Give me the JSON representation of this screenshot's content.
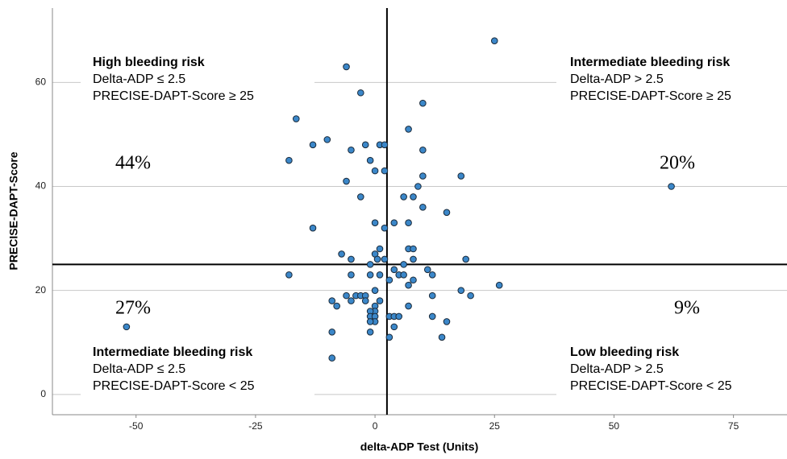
{
  "chart_data": {
    "type": "scatter",
    "x_label": "delta-ADP Test (Units)",
    "y_label": "PRECISE-DAPT-Score",
    "xlim": [
      -67.5,
      86.2
    ],
    "ylim": [
      -3.9,
      74.3
    ],
    "xticks": [
      -50,
      -25,
      0,
      25,
      50,
      75
    ],
    "yticks": [
      0,
      20,
      40,
      60
    ],
    "grid": true,
    "color": "#3b87c9",
    "reference_lines": {
      "x": 2.5,
      "y": 25
    },
    "annotations": [
      {
        "lines": [
          "High bleeding risk",
          "Delta-ADP ≤ 2.5",
          "PRECISE-DAPT-Score ≥ 25"
        ],
        "percent": "44%"
      },
      {
        "lines": [
          "Intermediate bleeding risk",
          "Delta-ADP > 2.5",
          "PRECISE-DAPT-Score ≥ 25"
        ],
        "percent": "20%"
      },
      {
        "lines": [
          "Intermediate bleeding risk",
          "Delta-ADP ≤ 2.5",
          "PRECISE-DAPT-Score < 25"
        ],
        "percent": "27%"
      },
      {
        "lines": [
          "Low bleeding risk",
          "Delta-ADP > 2.5",
          "PRECISE-DAPT-Score < 25"
        ],
        "percent": "9%"
      }
    ],
    "x": [
      25,
      -6,
      -3,
      10,
      -16.5,
      -10,
      -13,
      -2,
      1,
      2,
      7,
      -5,
      10,
      -18,
      -1,
      0,
      2,
      10,
      18,
      -6,
      9,
      62,
      6,
      8,
      -3,
      10,
      15,
      4,
      7,
      0,
      -13,
      2,
      -7,
      7,
      8,
      1,
      0,
      -5,
      0.5,
      2,
      8,
      19,
      -1,
      6,
      4,
      11,
      -18,
      -5,
      1,
      5,
      6,
      12,
      -1,
      3,
      8,
      7,
      26,
      0,
      18,
      20,
      -6,
      -4,
      -3,
      -2,
      12,
      -9,
      -5,
      -2,
      1,
      -8,
      7,
      0,
      0,
      -1,
      -1,
      0,
      3,
      4,
      5,
      12,
      0,
      -1,
      15,
      4,
      -52,
      -9,
      -1,
      3,
      14,
      -9
    ],
    "values": [
      68,
      63,
      58,
      56,
      53,
      49,
      48,
      48,
      48,
      48,
      51,
      47,
      47,
      45,
      45,
      43,
      43,
      42,
      42,
      41,
      40,
      40,
      38,
      38,
      38,
      36,
      35,
      33,
      33,
      33,
      32,
      32,
      27,
      28,
      28,
      28,
      27,
      26,
      26,
      26,
      26,
      26,
      25,
      25,
      24,
      24,
      23,
      23,
      23,
      23,
      23,
      23,
      23,
      22,
      22,
      21,
      21,
      20,
      20,
      19,
      19,
      19,
      19,
      19,
      19,
      18,
      18,
      18,
      18,
      17,
      17,
      17,
      16,
      16,
      15,
      15,
      15,
      15,
      15,
      15,
      14,
      14,
      14,
      13,
      13,
      12,
      12,
      11,
      11,
      7
    ]
  }
}
